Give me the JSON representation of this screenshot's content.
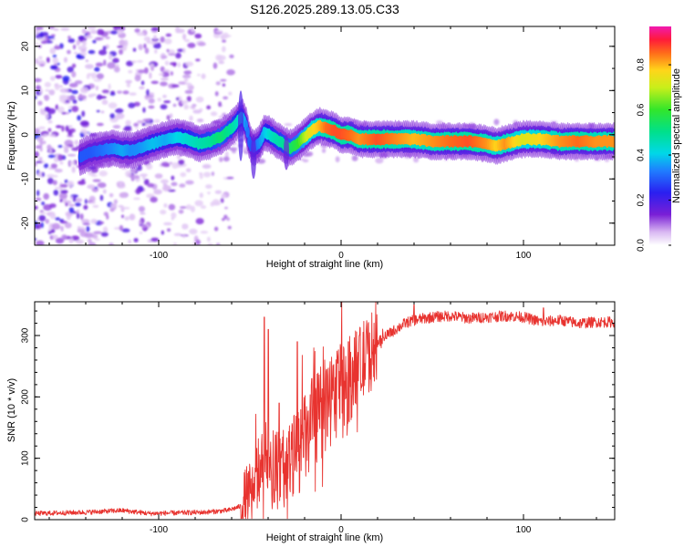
{
  "title": "S126.2025.289.13.05.C33",
  "colors": {
    "snr_line": "#e8332f",
    "frame": "#000000",
    "background": "#ffffff"
  },
  "chart_data": [
    {
      "type": "heatmap",
      "name": "spectrogram",
      "xlabel": "Height of straight line (km)",
      "ylabel": "Frequency (Hz)",
      "xlim": [
        -168,
        150
      ],
      "ylim": [
        -25,
        24.5
      ],
      "x_ticks": [
        -100,
        0,
        100
      ],
      "x_tick_labels": [
        "-100",
        "0",
        "100"
      ],
      "y_ticks": [
        -20,
        -10,
        0,
        10,
        20
      ],
      "y_tick_labels": [
        "-20",
        "-10",
        "0",
        "10",
        "20"
      ],
      "colorbar": {
        "label": "Normalized spectral amplitude",
        "range": [
          0,
          0.97
        ],
        "ticks": [
          0.0,
          0.2,
          0.4,
          0.6,
          0.8
        ],
        "tick_labels": [
          "0.0",
          "0.2",
          "0.4",
          "0.6",
          "0.8"
        ],
        "colormap": "rainbow-violet-to-magenta"
      },
      "ridge": {
        "x": [
          -143,
          -137,
          -132,
          -125,
          -120,
          -115,
          -110,
          -103,
          -96,
          -90,
          -84,
          -78,
          -72,
          -66,
          -60,
          -56,
          -54,
          -52,
          -50,
          -48,
          -45,
          -42,
          -39,
          -36,
          -32,
          -28,
          -24,
          -20,
          -16,
          -12,
          -8,
          -4,
          0,
          5,
          10,
          20,
          40,
          50,
          60,
          70,
          80,
          85,
          90,
          95,
          100,
          110,
          120,
          130,
          140,
          150
        ],
        "freq": [
          -5,
          -4,
          -3.5,
          -3,
          -3.5,
          -3.5,
          -3,
          -2,
          -1,
          -0.5,
          -1,
          -2,
          -1.5,
          -0.5,
          1.5,
          3.5,
          4,
          2,
          -2,
          -3,
          -2,
          0.5,
          0,
          -1,
          -2,
          -3,
          -2,
          -0.5,
          1,
          2,
          1.5,
          1,
          0,
          0,
          -1,
          -1,
          -1,
          -1.5,
          -1.5,
          -1.5,
          -2,
          -2.5,
          -2,
          -1.5,
          -1,
          -1,
          -1.5,
          -1.5,
          -1.5,
          -1.5
        ],
        "amplitude": [
          0.3,
          0.3,
          0.32,
          0.35,
          0.38,
          0.35,
          0.36,
          0.4,
          0.38,
          0.42,
          0.45,
          0.48,
          0.5,
          0.55,
          0.5,
          0.45,
          0.4,
          0.35,
          0.3,
          0.3,
          0.35,
          0.4,
          0.45,
          0.48,
          0.5,
          0.55,
          0.6,
          0.7,
          0.78,
          0.82,
          0.88,
          0.9,
          0.9,
          0.88,
          0.85,
          0.9,
          0.82,
          0.85,
          0.88,
          0.9,
          0.85,
          0.8,
          0.85,
          0.8,
          0.75,
          0.8,
          0.85,
          0.88,
          0.85,
          0.85
        ]
      },
      "noise_region_x": [
        -168,
        -60
      ]
    },
    {
      "type": "line",
      "name": "snr",
      "xlabel": "Height of straight line (km)",
      "ylabel": "SNR (10 * v/v)",
      "xlim": [
        -168,
        150
      ],
      "ylim": [
        0,
        355
      ],
      "x_ticks": [
        -100,
        0,
        100
      ],
      "x_tick_labels": [
        "-100",
        "0",
        "100"
      ],
      "y_ticks": [
        0,
        100,
        200,
        300
      ],
      "y_tick_labels": [
        "0",
        "100",
        "200",
        "300"
      ],
      "envelope": {
        "x": [
          -168,
          -140,
          -120,
          -105,
          -90,
          -75,
          -62,
          -55,
          -50,
          -47,
          -44,
          -42,
          -40,
          -38,
          -35,
          -30,
          -25,
          -20,
          -15,
          -10,
          -5,
          0,
          5,
          10,
          15,
          20,
          25,
          30,
          35,
          40,
          50,
          60,
          70,
          80,
          90,
          100,
          110,
          120,
          130,
          140,
          150
        ],
        "snr": [
          10,
          12,
          15,
          10,
          11,
          12,
          15,
          22,
          40,
          60,
          90,
          100,
          110,
          95,
          80,
          85,
          105,
          130,
          150,
          180,
          200,
          215,
          230,
          250,
          270,
          290,
          300,
          310,
          320,
          325,
          330,
          332,
          328,
          330,
          332,
          330,
          322,
          325,
          320,
          322,
          322
        ]
      },
      "spikes": [
        {
          "x": -42,
          "snr": 330
        },
        {
          "x": -40,
          "snr": 310
        },
        {
          "x": -34,
          "snr": 190
        },
        {
          "x": -24,
          "snr": 290
        },
        {
          "x": -16,
          "snr": 230
        },
        {
          "x": -8,
          "snr": 245
        },
        {
          "x": -2,
          "snr": 255
        },
        {
          "x": 4,
          "snr": 290
        },
        {
          "x": 10,
          "snr": 300
        },
        {
          "x": 40,
          "snr": 350
        },
        {
          "x": 111,
          "snr": 345
        }
      ]
    }
  ]
}
